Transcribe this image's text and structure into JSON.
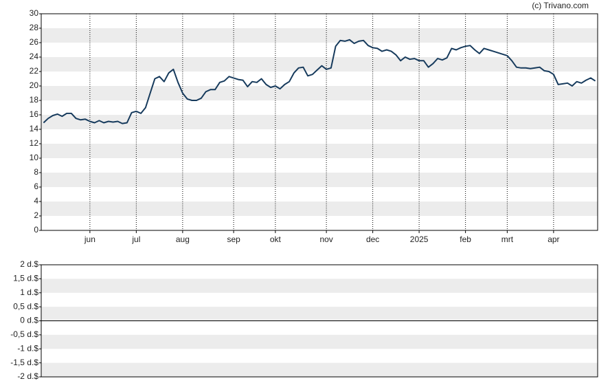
{
  "chart_data": [
    {
      "type": "line",
      "credit": "(c) Trivano.com",
      "categories": [
        null,
        null,
        null,
        null,
        null,
        null,
        null,
        null,
        null,
        null,
        "jun",
        null,
        null,
        null,
        null,
        null,
        null,
        null,
        null,
        null,
        "jul",
        null,
        null,
        null,
        null,
        null,
        null,
        null,
        null,
        null,
        "aug",
        null,
        null,
        null,
        null,
        null,
        null,
        null,
        null,
        null,
        null,
        "sep",
        null,
        null,
        null,
        null,
        null,
        null,
        null,
        null,
        "okt",
        null,
        null,
        null,
        null,
        null,
        null,
        null,
        null,
        null,
        null,
        "nov",
        null,
        null,
        null,
        null,
        null,
        null,
        null,
        null,
        null,
        "dec",
        null,
        null,
        null,
        null,
        null,
        null,
        null,
        null,
        null,
        "2025",
        null,
        null,
        null,
        null,
        null,
        null,
        null,
        null,
        null,
        "feb",
        null,
        null,
        null,
        null,
        null,
        null,
        null,
        null,
        "mrt",
        null,
        null,
        null,
        null,
        null,
        null,
        null,
        null,
        null,
        "apr",
        null,
        null,
        null,
        null,
        null,
        null,
        null,
        null,
        null
      ],
      "series": [
        {
          "color": "#163a5c",
          "values": [
            14.9,
            15.5,
            15.9,
            16.1,
            15.8,
            16.2,
            16.2,
            15.5,
            15.3,
            15.4,
            15.1,
            14.9,
            15.2,
            14.9,
            15.1,
            15.0,
            15.1,
            14.8,
            14.9,
            16.3,
            16.5,
            16.2,
            17.0,
            19.0,
            21.0,
            21.3,
            20.6,
            21.8,
            22.3,
            20.5,
            19.0,
            18.2,
            18.0,
            18.0,
            18.3,
            19.2,
            19.5,
            19.5,
            20.5,
            20.7,
            21.3,
            21.1,
            20.9,
            20.8,
            19.9,
            20.6,
            20.5,
            21.0,
            20.2,
            19.8,
            20.0,
            19.6,
            20.2,
            20.6,
            21.8,
            22.5,
            22.6,
            21.4,
            21.6,
            22.2,
            22.8,
            22.3,
            22.5,
            25.5,
            26.3,
            26.2,
            26.4,
            25.9,
            26.2,
            26.3,
            25.6,
            25.3,
            25.2,
            24.8,
            25.0,
            24.8,
            24.3,
            23.5,
            24.0,
            23.7,
            23.8,
            23.5,
            23.5,
            22.6,
            23.1,
            23.8,
            23.6,
            23.9,
            25.2,
            25.0,
            25.3,
            25.5,
            25.6,
            25.0,
            24.5,
            25.2,
            25.0,
            24.8,
            24.6,
            24.4,
            24.2,
            23.5,
            22.6,
            22.5,
            22.5,
            22.4,
            22.5,
            22.6,
            22.1,
            22.0,
            21.6,
            20.2,
            20.3,
            20.4,
            20.0,
            20.6,
            20.4,
            20.8,
            21.1,
            20.7
          ]
        }
      ],
      "ylim": [
        0,
        30
      ],
      "yticks": [
        0,
        2,
        4,
        6,
        8,
        10,
        12,
        14,
        16,
        18,
        20,
        22,
        24,
        26,
        28,
        30
      ],
      "grid": true
    },
    {
      "type": "bar",
      "ylim": [
        -2,
        2
      ],
      "yticks": [
        {
          "value": -2,
          "label": "-2 d.$"
        },
        {
          "value": -1.5,
          "label": "-1,5 d.$"
        },
        {
          "value": -1,
          "label": "-1 d.$"
        },
        {
          "value": -0.5,
          "label": "-0,5 d.$"
        },
        {
          "value": 0,
          "label": "0 d.$"
        },
        {
          "value": 0.5,
          "label": "0,5 d.$"
        },
        {
          "value": 1,
          "label": "1 d.$"
        },
        {
          "value": 1.5,
          "label": "1,5 d.$"
        },
        {
          "value": 2,
          "label": "2 d.$"
        }
      ],
      "grid": true
    }
  ]
}
